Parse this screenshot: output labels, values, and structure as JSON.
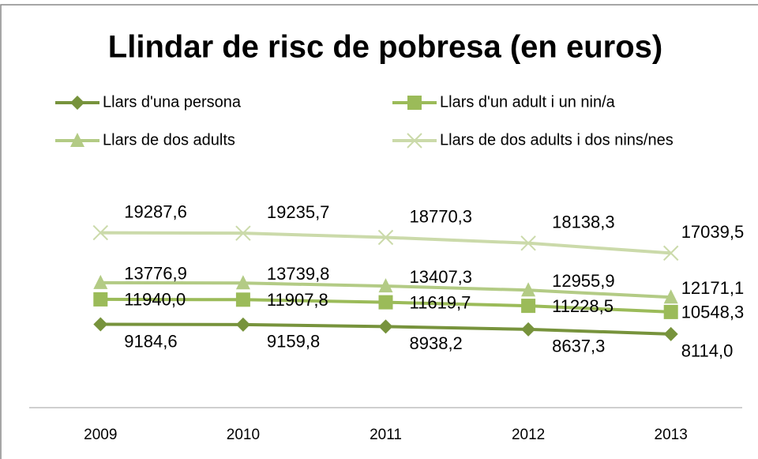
{
  "chart_data": {
    "type": "line",
    "title": "Llindar de risc de pobresa (en euros)",
    "categories": [
      "2009",
      "2010",
      "2011",
      "2012",
      "2013"
    ],
    "ylim": [
      0,
      25000
    ],
    "series": [
      {
        "name": "Llars d'una persona",
        "color": "#77933c",
        "marker": "diamond",
        "values": [
          9184.6,
          9159.8,
          8938.2,
          8637.3,
          8114.0
        ],
        "value_labels": [
          "9184,6",
          "9159,8",
          "8938,2",
          "8637,3",
          "8114,0"
        ]
      },
      {
        "name": "Llars d'un adult i un nin/a",
        "color": "#9bbb59",
        "marker": "square",
        "values": [
          11940.0,
          11907.8,
          11619.7,
          11228.5,
          10548.3
        ],
        "value_labels": [
          "11940,0",
          "11907,8",
          "11619,7",
          "11228,5",
          "10548,3"
        ]
      },
      {
        "name": "Llars de dos adults",
        "color": "#b3cb85",
        "marker": "triangle",
        "values": [
          13776.9,
          13739.8,
          13407.3,
          12955.9,
          12171.1
        ],
        "value_labels": [
          "13776,9",
          "13739,8",
          "13407,3",
          "12955,9",
          "12171,1"
        ]
      },
      {
        "name": "Llars de  dos adults i dos nins/nes",
        "color": "#cbdaaa",
        "marker": "x",
        "values": [
          19287.6,
          19235.7,
          18770.3,
          18138.3,
          17039.5
        ],
        "value_labels": [
          "19287,6",
          "19235,7",
          "18770,3",
          "18138,3",
          "17039,5"
        ]
      }
    ]
  }
}
